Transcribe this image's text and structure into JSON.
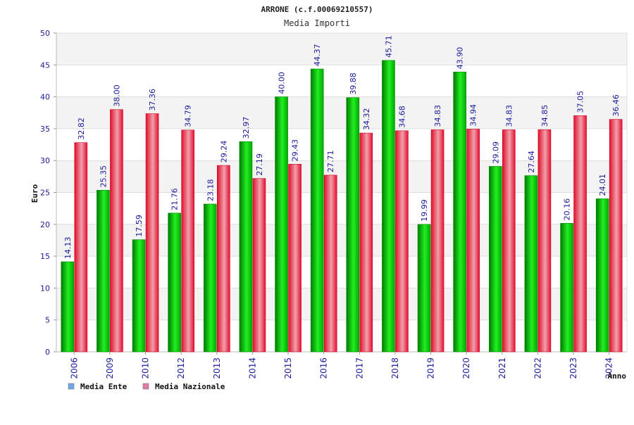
{
  "chart_data": {
    "type": "bar",
    "title": "ARRONE (c.f.00069210557)",
    "subtitle": "Media Importi",
    "ylabel": "Euro",
    "xlabel": "Anno",
    "ylim": [
      0,
      50
    ],
    "yticks": [
      "0",
      "5",
      "10",
      "15",
      "20",
      "25",
      "30",
      "35",
      "40",
      "45",
      "50"
    ],
    "grid": true,
    "legend_position": "bottom-left",
    "categories": [
      "2006",
      "2009",
      "2010",
      "2012",
      "2013",
      "2014",
      "2015",
      "2016",
      "2017",
      "2018",
      "2019",
      "2020",
      "2021",
      "2022",
      "2023",
      "2024"
    ],
    "series": [
      {
        "name": "Media Ente",
        "bar_color": "#00cc00",
        "legend_color": "#6fa8e8",
        "values": [
          14.13,
          25.35,
          17.59,
          21.76,
          23.18,
          32.97,
          40.0,
          44.37,
          39.88,
          45.71,
          19.99,
          43.9,
          29.09,
          27.64,
          20.16,
          24.01
        ],
        "labels": [
          "14.13",
          "25.35",
          "17.59",
          "21.76",
          "23.18",
          "32.97",
          "40.00",
          "44.37",
          "39.88",
          "45.71",
          "19.99",
          "43.90",
          "29.09",
          "27.64",
          "20.16",
          "24.01"
        ]
      },
      {
        "name": "Media Nazionale",
        "bar_color": "#ee1133",
        "legend_color": "#e07aa8",
        "values": [
          32.82,
          38.0,
          37.36,
          34.79,
          29.24,
          27.19,
          29.43,
          27.71,
          34.32,
          34.68,
          34.83,
          34.94,
          34.83,
          34.85,
          37.05,
          36.46
        ],
        "labels": [
          "32.82",
          "38.00",
          "37.36",
          "34.79",
          "29.24",
          "27.19",
          "29.43",
          "27.71",
          "34.32",
          "34.68",
          "34.83",
          "34.94",
          "34.83",
          "34.85",
          "37.05",
          "36.46"
        ]
      }
    ]
  }
}
